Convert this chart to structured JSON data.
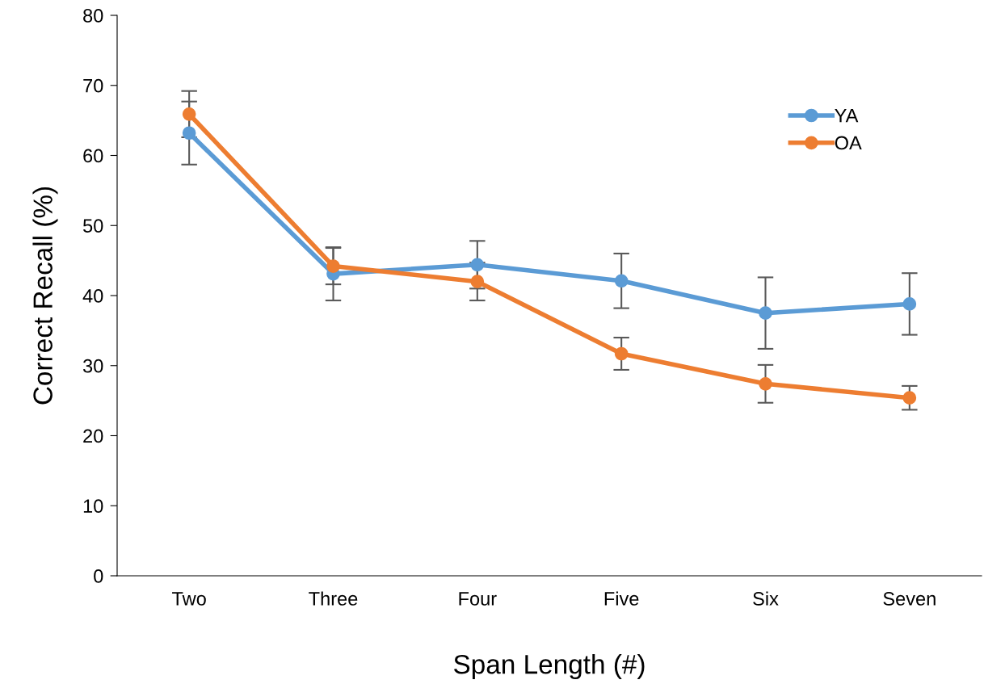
{
  "chart_data": {
    "type": "line",
    "xlabel": "Span Length (#)",
    "ylabel": "Correct Recall (%)",
    "categories": [
      "Two",
      "Three",
      "Four",
      "Five",
      "Six",
      "Seven"
    ],
    "series": [
      {
        "name": "YA",
        "color": "#5b9bd5",
        "values": [
          63.2,
          43.1,
          44.4,
          42.1,
          37.5,
          38.8
        ],
        "errors": [
          4.5,
          3.8,
          3.4,
          3.9,
          5.1,
          4.4
        ]
      },
      {
        "name": "OA",
        "color": "#ed7d31",
        "values": [
          65.9,
          44.2,
          42.0,
          31.7,
          27.4,
          25.4
        ],
        "errors": [
          3.3,
          2.6,
          2.7,
          2.3,
          2.7,
          1.7
        ]
      }
    ],
    "ylim": [
      0,
      80
    ],
    "yticks": [
      0,
      10,
      20,
      30,
      40,
      50,
      60,
      70,
      80
    ],
    "grid": false,
    "legend": "top right",
    "marker": "circle",
    "line_style": "solid"
  }
}
